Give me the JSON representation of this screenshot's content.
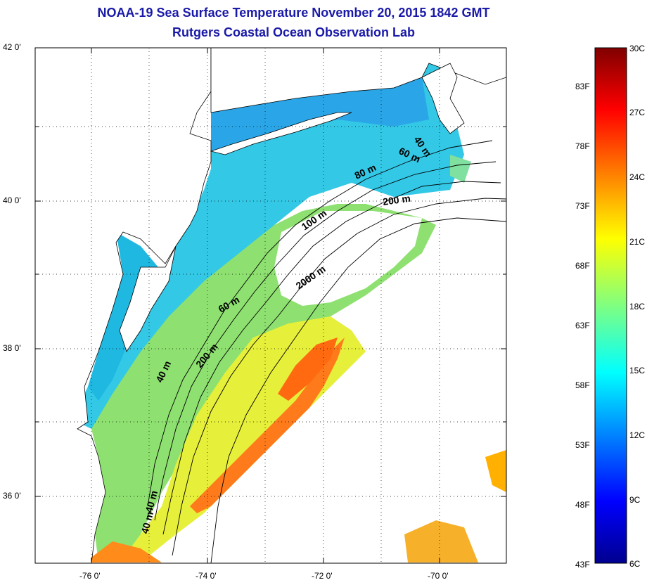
{
  "title": "NOAA-19 Sea Surface Temperature November 20, 2015 1842 GMT",
  "subtitle": "Rutgers Coastal Ocean Observation Lab",
  "lat_labels": [
    {
      "lat": 42,
      "text": "42 0'"
    },
    {
      "lat": 40,
      "text": "40 0'"
    },
    {
      "lat": 38,
      "text": "38 0'"
    },
    {
      "lat": 36,
      "text": "36 0'"
    }
  ],
  "lon_labels": [
    {
      "lon": -76,
      "text": "-76 0'"
    },
    {
      "lon": -74,
      "text": "-74 0'"
    },
    {
      "lon": -72,
      "text": "-72 0'"
    },
    {
      "lon": -70,
      "text": "-70 0'"
    }
  ],
  "contour_labels": [
    "40 m",
    "60 m",
    "80 m",
    "200 m",
    "100 m",
    "2000 m",
    "60 m",
    "200 m",
    "40 m",
    "40 m",
    "40 m"
  ],
  "colorbar": {
    "celsius": [
      "30C",
      "27C",
      "24C",
      "21C",
      "18C",
      "15C",
      "12C",
      "9C",
      "6C"
    ],
    "fahrenheit": [
      "83F",
      "78F",
      "73F",
      "68F",
      "63F",
      "58F",
      "53F",
      "48F",
      "43F"
    ],
    "min_c": 6,
    "max_c": 30,
    "colormap": "jet"
  },
  "colors": {
    "title": "#1a1aa8",
    "land": "#ffffff",
    "cloud": "#ffffff"
  }
}
